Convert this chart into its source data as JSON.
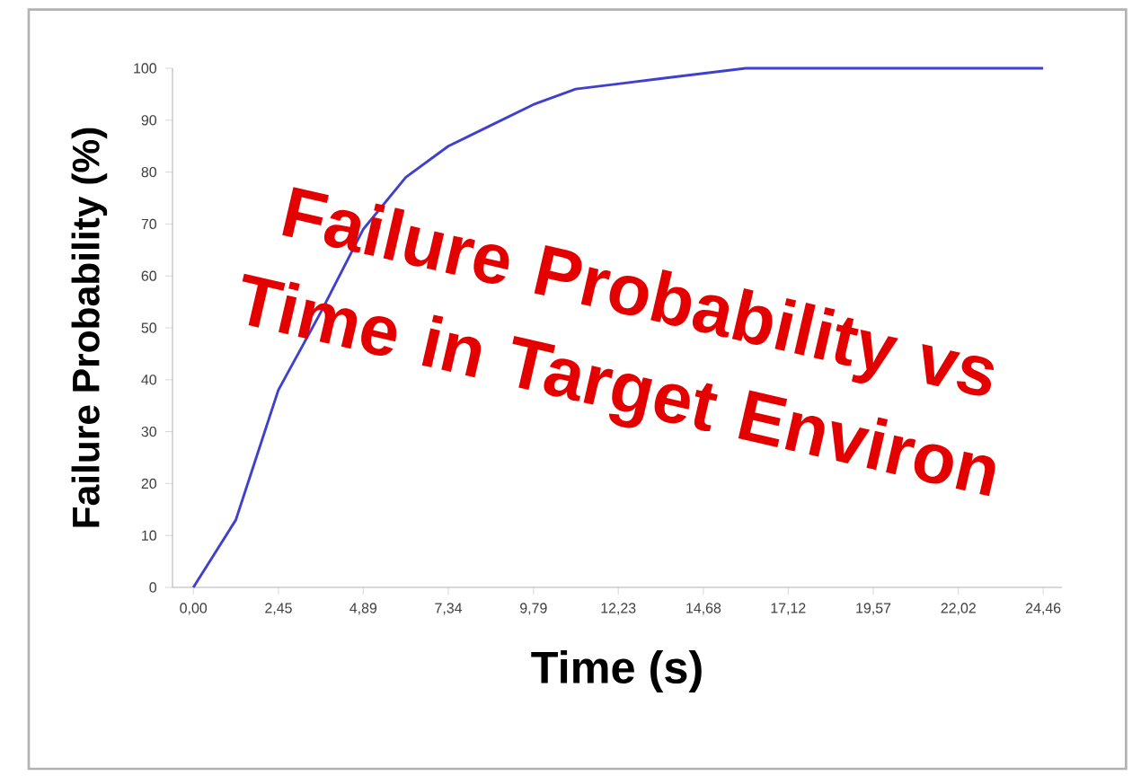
{
  "chart_data": {
    "type": "line",
    "title": "Failure Probability vs Time in Target Environ",
    "xlabel": "Time (s)",
    "ylabel": "Failure Probability (%)",
    "series": [
      {
        "color": "#4040d0",
        "x": [
          0,
          1.223,
          2.446,
          3.669,
          4.892,
          6.115,
          7.338,
          8.561,
          9.784,
          11.007,
          12.23,
          13.453,
          14.676,
          15.899,
          17.122,
          18.345,
          19.568,
          20.791,
          22.014,
          23.237,
          24.46
        ],
        "values": [
          0,
          13,
          38,
          53,
          69,
          79,
          85,
          89,
          93,
          96,
          97,
          98,
          99,
          100,
          100,
          100,
          100,
          100,
          100,
          100,
          100
        ]
      }
    ],
    "xlim": [
      -0.6,
      25.0
    ],
    "ylim": [
      0,
      100
    ],
    "xticks": [
      {
        "value": 0,
        "label": "0,00"
      },
      {
        "value": 2.45,
        "label": "2,45"
      },
      {
        "value": 4.89,
        "label": "4,89"
      },
      {
        "value": 7.34,
        "label": "7,34"
      },
      {
        "value": 9.79,
        "label": "9,79"
      },
      {
        "value": 12.23,
        "label": "12,23"
      },
      {
        "value": 14.68,
        "label": "14,68"
      },
      {
        "value": 17.12,
        "label": "17,12"
      },
      {
        "value": 19.57,
        "label": "19,57"
      },
      {
        "value": 22.02,
        "label": "22,02"
      },
      {
        "value": 24.46,
        "label": "24,46"
      }
    ],
    "yticks": [
      0,
      10,
      20,
      30,
      40,
      50,
      60,
      70,
      80,
      90,
      100
    ]
  }
}
